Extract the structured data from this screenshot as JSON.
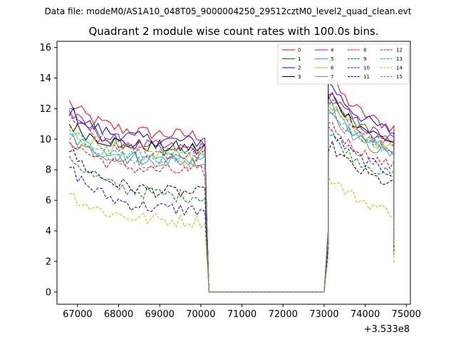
{
  "suptitle": "Data file: modeM0/AS1A10_048T05_9000004250_29512cztM0_level2_quad_clean.evt",
  "chart_data": {
    "type": "line",
    "title": "Quadrant 2 module wise count rates with 100.0s bins.",
    "xlabel": "",
    "ylabel": "",
    "x_offset_label": "+3.533e8",
    "xlim": [
      66500,
      75100
    ],
    "ylim": [
      -0.8,
      16.4
    ],
    "x_ticks": [
      67000,
      68000,
      69000,
      70000,
      71000,
      72000,
      73000,
      74000,
      75000
    ],
    "x_tick_labels": [
      "67000",
      "68000",
      "69000",
      "70000",
      "71000",
      "72000",
      "73000",
      "74000",
      "75000"
    ],
    "y_ticks": [
      0,
      2,
      4,
      6,
      8,
      10,
      12,
      14,
      16
    ],
    "y_tick_labels": [
      "0",
      "2",
      "4",
      "6",
      "8",
      "10",
      "12",
      "14",
      "16"
    ],
    "grid": false,
    "legend_location": "upper right",
    "legend_columns": 4,
    "segments": [
      {
        "x_start": 66800,
        "x_end": 70100
      },
      {
        "x_start": 73000,
        "x_end": 74700
      }
    ],
    "gap": {
      "x_start": 70200,
      "x_end": 73000,
      "value": 0
    },
    "series": [
      {
        "name": "0",
        "color": "#ff0000",
        "dash": "solid",
        "level1": 10.2,
        "level2": 11.8,
        "start1": 12.4
      },
      {
        "name": "1",
        "color": "#008000",
        "dash": "solid",
        "level1": 9.2,
        "level2": 10.8,
        "start1": 12.1
      },
      {
        "name": "2",
        "color": "#0000ff",
        "dash": "solid",
        "level1": 9.8,
        "level2": 11.5,
        "start1": 11.9
      },
      {
        "name": "3",
        "color": "#000000",
        "dash": "solid",
        "level1": 9.4,
        "level2": 10.9,
        "start1": 11.0
      },
      {
        "name": "4",
        "color": "#bf00bf",
        "dash": "solid",
        "level1": 9.3,
        "level2": 11.0,
        "start1": 11.8
      },
      {
        "name": "5",
        "color": "#00bfbf",
        "dash": "solid",
        "level1": 8.6,
        "level2": 10.2,
        "start1": 10.2
      },
      {
        "name": "6",
        "color": "#bfbf00",
        "dash": "solid",
        "level1": 8.9,
        "level2": 10.4,
        "start1": 10.6
      },
      {
        "name": "7",
        "color": "#808080",
        "dash": "solid",
        "level1": 8.5,
        "level2": 10.0,
        "start1": 10.0
      },
      {
        "name": "8",
        "color": "#ff0000",
        "dash": "dashed",
        "level1": 7.8,
        "level2": 9.3,
        "start1": 10.0
      },
      {
        "name": "9",
        "color": "#008000",
        "dash": "dashed",
        "level1": 6.2,
        "level2": 8.7,
        "start1": 9.0
      },
      {
        "name": "10",
        "color": "#0000ff",
        "dash": "dashed",
        "level1": 5.3,
        "level2": 8.9,
        "start1": 8.2
      },
      {
        "name": "11",
        "color": "#000000",
        "dash": "dashed",
        "level1": 6.4,
        "level2": 8.1,
        "start1": 9.3
      },
      {
        "name": "12",
        "color": "#bf00bf",
        "dash": "dashed",
        "level1": 8.9,
        "level2": 10.6,
        "start1": 11.6
      },
      {
        "name": "13",
        "color": "#00bfbf",
        "dash": "dashed",
        "level1": 8.7,
        "level2": 10.3,
        "start1": 10.4
      },
      {
        "name": "14",
        "color": "#bfbf00",
        "dash": "dashed",
        "level1": 4.6,
        "level2": 6.3,
        "start1": 6.5
      },
      {
        "name": "15",
        "color": "#808080",
        "dash": "dashed",
        "level1": 8.4,
        "level2": 10.2,
        "start1": 10.1
      }
    ]
  }
}
